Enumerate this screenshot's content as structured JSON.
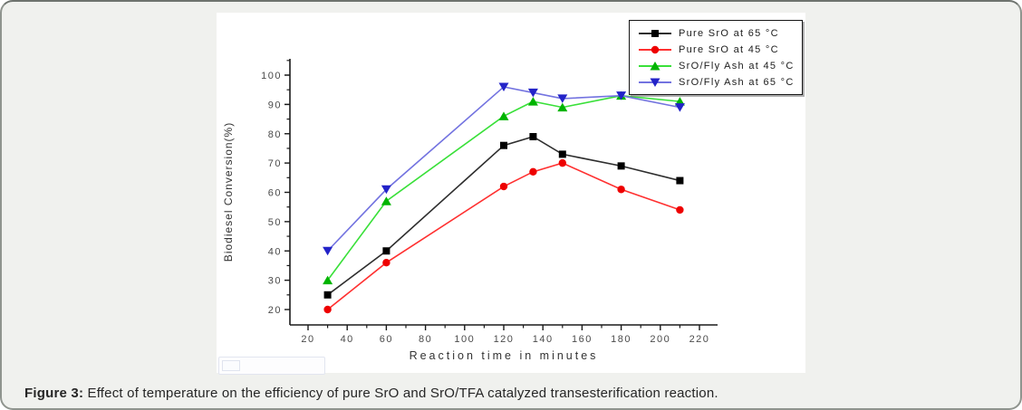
{
  "panel": {
    "caption_prefix": "Figure 3:",
    "caption_text": " Effect of temperature on the efficiency of pure SrO and SrO/TFA catalyzed transesterification reaction."
  },
  "chart_data": {
    "type": "line",
    "title": "",
    "xlabel": "Reaction time in minutes",
    "ylabel": "Biodiesel Conversion(%)",
    "x": [
      30,
      60,
      120,
      135,
      150,
      180,
      210
    ],
    "series": [
      {
        "name": "Pure SrO at 65 °C",
        "marker": "square",
        "line_color": "#2e2e2e",
        "marker_color": "#000000",
        "values": [
          25,
          40,
          76,
          79,
          73,
          69,
          64
        ]
      },
      {
        "name": "Pure SrO at 45 °C",
        "marker": "circle",
        "line_color": "#ff3030",
        "marker_color": "#ee0000",
        "values": [
          20,
          36,
          62,
          67,
          70,
          61,
          54
        ]
      },
      {
        "name": "SrO/Fly Ash at 45 °C",
        "marker": "triangle-up",
        "line_color": "#39e039",
        "marker_color": "#00b400",
        "values": [
          30,
          57,
          86,
          91,
          89,
          93,
          91
        ]
      },
      {
        "name": "SrO/Fly Ash at 65 °C",
        "marker": "triangle-down",
        "line_color": "#7373e0",
        "marker_color": "#2323c8",
        "values": [
          40,
          61,
          96,
          94,
          92,
          93,
          89
        ]
      }
    ],
    "xticks": [
      20,
      40,
      60,
      80,
      100,
      120,
      140,
      160,
      180,
      200,
      220
    ],
    "yticks": [
      20,
      30,
      40,
      50,
      60,
      70,
      80,
      90,
      100
    ],
    "xlim": [
      10,
      230
    ],
    "ylim": [
      15,
      104
    ],
    "grid": false,
    "legend_position": "top-right"
  }
}
